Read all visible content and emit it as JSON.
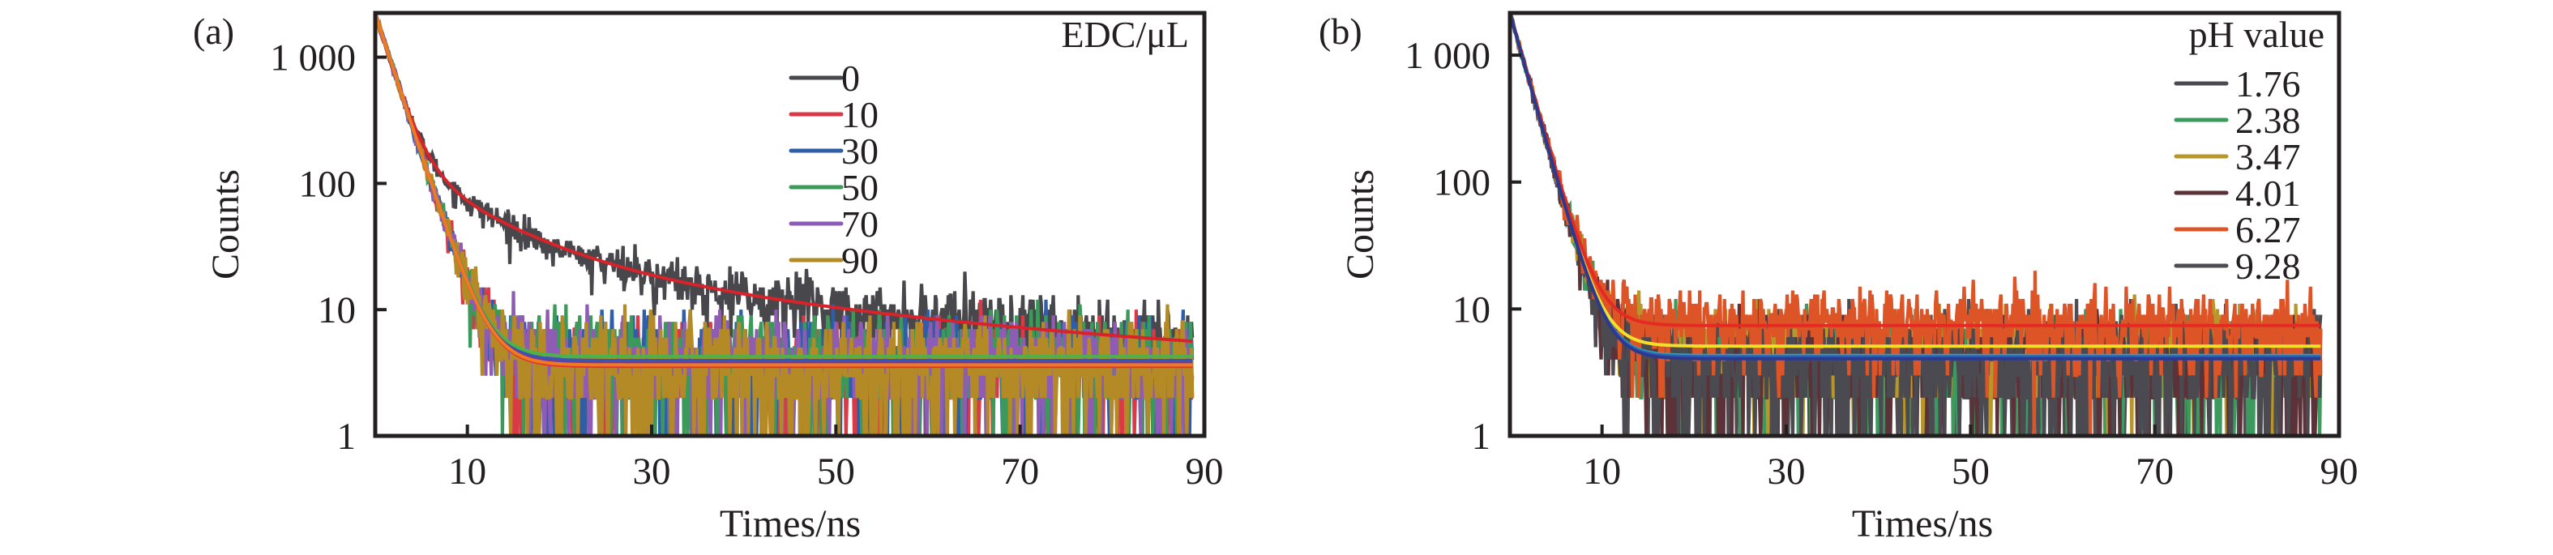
{
  "chart_data": [
    {
      "type": "line",
      "panel_label": "(a)",
      "xlabel": "Times/ns",
      "ylabel": "Counts",
      "yscale": "log",
      "xlim": [
        0,
        90
      ],
      "ylim": [
        1,
        2240
      ],
      "xticks": [
        10,
        30,
        50,
        70,
        90
      ],
      "xtick_labels": [
        "10",
        "30",
        "50",
        "70",
        "90"
      ],
      "yticks": [
        1,
        10,
        100,
        1000
      ],
      "ytick_labels": [
        "1",
        "10",
        "100",
        "1 000"
      ],
      "grid": false,
      "legend_title": "EDC/μL",
      "legend_position": "top-right",
      "t_end": 88.7,
      "series": [
        {
          "name": "0",
          "color": "#47474c",
          "fit_color": "#d8232a",
          "model": {
            "a_fast": 2050,
            "tau_fast": 1.7,
            "a_mid": 150,
            "tau_mid": 8,
            "a_slow": 28,
            "tau_slow": 35,
            "baseline": 3.4
          }
        },
        {
          "name": "10",
          "color": "#d93a45",
          "fit_color": "#e2362a",
          "model": {
            "a_fast": 2200,
            "tau_fast": 1.95,
            "baseline": 3.55
          }
        },
        {
          "name": "30",
          "color": "#2f5ea8",
          "fit_color": "#2b5db0",
          "model": {
            "a_fast": 2200,
            "tau_fast": 1.95,
            "baseline": 3.95
          }
        },
        {
          "name": "50",
          "color": "#3b9a5a",
          "fit_color": "#4cb24a",
          "model": {
            "a_fast": 2200,
            "tau_fast": 1.95,
            "baseline": 4.25
          }
        },
        {
          "name": "70",
          "color": "#8e5bb5",
          "fit_color": "#6a3fa0",
          "model": {
            "a_fast": 2200,
            "tau_fast": 1.95,
            "baseline": 3.8
          }
        },
        {
          "name": "90",
          "color": "#b38a26",
          "fit_color": "#f07a22",
          "model": {
            "a_fast": 2200,
            "tau_fast": 1.95,
            "baseline": 3.65
          }
        }
      ]
    },
    {
      "type": "line",
      "panel_label": "(b)",
      "xlabel": "Times/ns",
      "ylabel": "Counts",
      "yscale": "log",
      "xlim": [
        0,
        90
      ],
      "ylim": [
        1,
        2150
      ],
      "xticks": [
        10,
        30,
        50,
        70,
        90
      ],
      "xtick_labels": [
        "10",
        "30",
        "50",
        "70",
        "90"
      ],
      "yticks": [
        1,
        10,
        100,
        1000
      ],
      "ytick_labels": [
        "1",
        "10",
        "100",
        "1 000"
      ],
      "grid": false,
      "legend_title": "pH value",
      "legend_position": "top-right",
      "t_end": 88.0,
      "series": [
        {
          "name": "1.76",
          "color": "#4a4a50",
          "fit_color": "#2a3f9a",
          "model": {
            "a_fast": 2150,
            "tau_fast": 1.68,
            "baseline": 4.1
          }
        },
        {
          "name": "2.38",
          "color": "#3c9a5e",
          "fit_color": "#3aa0b0",
          "model": {
            "a_fast": 2150,
            "tau_fast": 1.68,
            "baseline": 4.3
          }
        },
        {
          "name": "3.47",
          "color": "#b8962a",
          "fit_color": "#f2e02a",
          "model": {
            "a_fast": 2150,
            "tau_fast": 1.68,
            "baseline": 5.1
          }
        },
        {
          "name": "4.01",
          "color": "#5a3238",
          "fit_color": "#2f5fb5",
          "model": {
            "a_fast": 2150,
            "tau_fast": 1.68,
            "baseline": 4.2
          }
        },
        {
          "name": "6.27",
          "color": "#dd5426",
          "fit_color": "#e42a22",
          "model": {
            "a_fast": 2150,
            "tau_fast": 1.72,
            "baseline": 7.4
          }
        },
        {
          "name": "9.28",
          "color": "#4d4d52",
          "fit_color": "#2b3a8f",
          "model": {
            "a_fast": 2150,
            "tau_fast": 1.68,
            "baseline": 4.05
          }
        }
      ]
    }
  ]
}
